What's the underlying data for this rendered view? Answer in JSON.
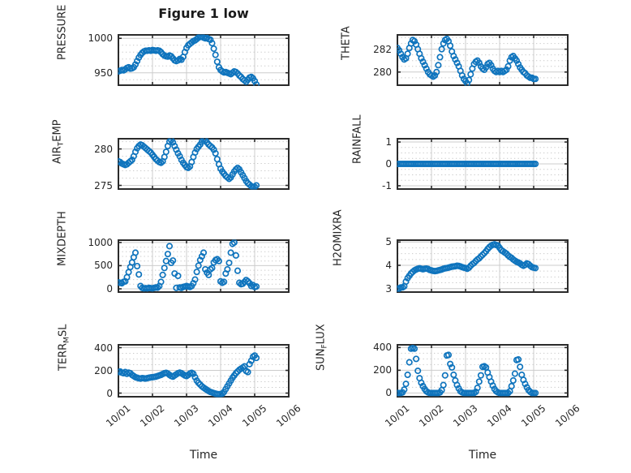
{
  "title": "Figure 1 low",
  "marker_color": "#0f74bd",
  "axis_color": "#2b2b2b",
  "grid_color": "#cccccc",
  "minor_grid_color": "#c9c9c9",
  "chart_data": {
    "type": "scatter",
    "title": "Figure 1 low",
    "xlabel": "Time",
    "marker": "open-circle",
    "grid": "major solid + minor dotted",
    "xlim": [
      0,
      5
    ],
    "xtick_positions": [
      0,
      1,
      2,
      3,
      4,
      5
    ],
    "xtick_labels": [
      "10/01",
      "10/02",
      "10/03",
      "10/04",
      "10/05",
      "10/06"
    ],
    "t_start": 0,
    "t_step": 0.05,
    "subplots": [
      {
        "id": "pressure",
        "ylabel": "PRESSURE",
        "ylabel_parts": [
          {
            "text": "PRESSURE"
          }
        ],
        "yticks": [
          950,
          1000
        ],
        "ylim": [
          932,
          1005
        ],
        "minor_step": 10,
        "values": [
          952,
          953,
          954,
          953.5,
          955,
          957,
          958,
          956,
          956.5,
          958,
          962,
          967,
          972,
          976,
          979,
          981,
          982,
          982,
          982.5,
          982,
          983,
          982.5,
          982,
          982.5,
          982,
          980,
          977,
          975,
          974,
          973.5,
          975,
          974,
          971,
          968,
          967,
          968,
          970,
          969,
          973,
          980,
          986,
          990,
          992,
          994,
          996,
          997,
          999,
          1001,
          1002,
          1002.5,
          1001,
          1000,
          1000.5,
          999,
          998,
          993,
          985,
          976,
          966,
          958,
          954,
          952,
          950.5,
          951,
          950,
          949,
          948,
          950,
          952,
          951,
          949,
          946,
          944,
          941,
          939,
          937,
          940,
          943,
          944,
          942,
          938,
          933
        ]
      },
      {
        "id": "theta",
        "ylabel": "THETA",
        "ylabel_parts": [
          {
            "text": "THETA"
          }
        ],
        "yticks": [
          280,
          282
        ],
        "ylim": [
          278.85,
          283.25
        ],
        "minor_step": 0.5,
        "values": [
          282.1,
          281.9,
          281.6,
          281.3,
          281.1,
          281.2,
          281.6,
          282.1,
          282.5,
          282.8,
          282.7,
          282.4,
          282.0,
          281.6,
          281.2,
          280.9,
          280.6,
          280.3,
          280.0,
          279.8,
          279.7,
          279.6,
          279.7,
          280.0,
          280.6,
          281.3,
          282.0,
          282.5,
          282.8,
          282.9,
          282.7,
          282.3,
          281.8,
          281.4,
          281.1,
          280.8,
          280.5,
          280.1,
          279.7,
          279.4,
          279.2,
          279.0,
          279.3,
          279.8,
          280.3,
          280.7,
          280.9,
          281.0,
          280.8,
          280.5,
          280.3,
          280.2,
          280.4,
          280.7,
          280.8,
          280.6,
          280.3,
          280.1,
          280.0,
          280.1,
          280.0,
          280.1,
          280.0,
          280.1,
          280.2,
          280.5,
          281.0,
          281.3,
          281.4,
          281.2,
          281.0,
          280.7,
          280.4,
          280.2,
          280.0,
          279.9,
          279.7,
          279.6,
          279.5,
          279.5,
          279.4,
          279.4
        ]
      },
      {
        "id": "air_temp",
        "ylabel": "AIR_TEMP",
        "ylabel_parts": [
          {
            "text": "AIR"
          },
          {
            "sub": "T"
          },
          {
            "text": "EMP"
          }
        ],
        "yticks": [
          275,
          280
        ],
        "ylim": [
          274.5,
          281.4
        ],
        "minor_step": 1,
        "values": [
          278.3,
          278.2,
          278.0,
          277.9,
          277.8,
          277.9,
          278.1,
          278.3,
          278.5,
          279.0,
          279.6,
          280.1,
          280.4,
          280.6,
          280.5,
          280.3,
          280.1,
          279.9,
          279.7,
          279.5,
          279.2,
          278.9,
          278.6,
          278.4,
          278.2,
          278.1,
          278.3,
          278.9,
          279.6,
          280.4,
          281.0,
          281.2,
          280.9,
          280.4,
          279.9,
          279.4,
          279.0,
          278.5,
          278.1,
          277.8,
          277.5,
          277.4,
          277.6,
          278.2,
          278.9,
          279.5,
          280.0,
          280.3,
          280.6,
          281.0,
          281.3,
          281.2,
          280.9,
          280.6,
          280.4,
          280.2,
          279.9,
          279.4,
          278.6,
          277.9,
          277.3,
          276.9,
          276.6,
          276.3,
          276.1,
          275.9,
          276.1,
          276.5,
          276.9,
          277.2,
          277.4,
          277.2,
          276.8,
          276.4,
          276.0,
          275.6,
          275.3,
          275.1,
          274.9,
          274.8,
          274.8,
          275.0
        ]
      },
      {
        "id": "rainfall",
        "ylabel": "RAINFALL",
        "ylabel_parts": [
          {
            "text": "RAINFALL"
          }
        ],
        "yticks": [
          -1,
          0,
          1
        ],
        "ylim": [
          -1.15,
          1.15
        ],
        "minor_step": 0.25,
        "values": [
          0,
          0,
          0,
          0,
          0,
          0,
          0,
          0,
          0,
          0,
          0,
          0,
          0,
          0,
          0,
          0,
          0,
          0,
          0,
          0,
          0,
          0,
          0,
          0,
          0,
          0,
          0,
          0,
          0,
          0,
          0,
          0,
          0,
          0,
          0,
          0,
          0,
          0,
          0,
          0,
          0,
          0,
          0,
          0,
          0,
          0,
          0,
          0,
          0,
          0,
          0,
          0,
          0,
          0,
          0,
          0,
          0,
          0,
          0,
          0,
          0,
          0,
          0,
          0,
          0,
          0,
          0,
          0,
          0,
          0,
          0,
          0,
          0,
          0,
          0,
          0,
          0,
          0,
          0,
          0,
          0,
          0
        ]
      },
      {
        "id": "mixdepth",
        "ylabel": "MIXDEPTH",
        "ylabel_parts": [
          {
            "text": "MIXDEPTH"
          }
        ],
        "yticks": [
          0,
          500,
          1000
        ],
        "ylim": [
          -70,
          1050
        ],
        "minor_step": 100,
        "values": [
          140,
          130,
          120,
          150,
          160,
          250,
          360,
          470,
          570,
          680,
          780,
          490,
          310,
          60,
          20,
          10,
          15,
          10,
          20,
          15,
          10,
          20,
          30,
          25,
          60,
          150,
          300,
          450,
          600,
          750,
          920,
          560,
          610,
          330,
          20,
          280,
          30,
          20,
          40,
          50,
          60,
          50,
          40,
          60,
          120,
          200,
          365,
          500,
          620,
          700,
          780,
          420,
          350,
          300,
          420,
          450,
          570,
          620,
          640,
          600,
          160,
          130,
          150,
          330,
          420,
          560,
          780,
          970,
          1000,
          720,
          390,
          130,
          100,
          110,
          150,
          190,
          160,
          120,
          60,
          80,
          40,
          50
        ]
      },
      {
        "id": "h2omixra",
        "ylabel": "H2OMIXRA",
        "ylabel_parts": [
          {
            "text": "H2OMIXRA"
          }
        ],
        "yticks": [
          3,
          4,
          5
        ],
        "ylim": [
          2.85,
          5.08
        ],
        "minor_step": 0.25,
        "values": [
          3.0,
          3.0,
          3.05,
          3.05,
          3.1,
          3.3,
          3.45,
          3.55,
          3.65,
          3.72,
          3.78,
          3.82,
          3.85,
          3.87,
          3.85,
          3.83,
          3.85,
          3.86,
          3.84,
          3.8,
          3.78,
          3.76,
          3.75,
          3.76,
          3.78,
          3.8,
          3.82,
          3.85,
          3.87,
          3.88,
          3.9,
          3.92,
          3.94,
          3.95,
          3.96,
          3.98,
          3.97,
          3.95,
          3.92,
          3.9,
          3.88,
          3.85,
          3.9,
          3.98,
          4.05,
          4.1,
          4.18,
          4.25,
          4.3,
          4.38,
          4.45,
          4.52,
          4.6,
          4.7,
          4.78,
          4.84,
          4.88,
          4.9,
          4.87,
          4.85,
          4.75,
          4.65,
          4.6,
          4.55,
          4.5,
          4.42,
          4.36,
          4.32,
          4.25,
          4.2,
          4.15,
          4.12,
          4.08,
          4.02,
          3.98,
          4.02,
          4.08,
          4.05,
          3.98,
          3.92,
          3.9,
          3.88
        ]
      },
      {
        "id": "terr_msl",
        "ylabel": "TERR_MSL",
        "ylabel_parts": [
          {
            "text": "TERR"
          },
          {
            "sub": "M"
          },
          {
            "text": "SL"
          }
        ],
        "yticks": [
          0,
          200,
          400
        ],
        "ylim": [
          -32,
          425
        ],
        "minor_step": 50,
        "values": [
          185,
          190,
          180,
          175,
          185,
          170,
          180,
          175,
          160,
          150,
          140,
          135,
          130,
          128,
          132,
          130,
          128,
          132,
          135,
          138,
          140,
          142,
          145,
          150,
          155,
          160,
          168,
          175,
          178,
          172,
          160,
          150,
          145,
          155,
          165,
          175,
          180,
          175,
          165,
          155,
          150,
          160,
          172,
          178,
          170,
          140,
          110,
          90,
          75,
          60,
          48,
          38,
          28,
          18,
          10,
          5,
          0,
          -5,
          -8,
          -10,
          -8,
          -5,
          10,
          35,
          60,
          85,
          110,
          135,
          155,
          175,
          190,
          205,
          215,
          225,
          235,
          195,
          185,
          255,
          285,
          320,
          330,
          310
        ]
      },
      {
        "id": "sun_flux",
        "ylabel": "SUN_FLUX",
        "ylabel_parts": [
          {
            "text": "SUN"
          },
          {
            "sub": "F"
          },
          {
            "text": "LUX"
          }
        ],
        "yticks": [
          0,
          200,
          400
        ],
        "ylim": [
          -33,
          424
        ],
        "minor_step": 50,
        "values": [
          0,
          0,
          0,
          5,
          30,
          80,
          160,
          270,
          390,
          395,
          390,
          300,
          195,
          130,
          90,
          60,
          35,
          15,
          5,
          0,
          0,
          0,
          0,
          0,
          0,
          5,
          25,
          70,
          155,
          330,
          335,
          255,
          225,
          160,
          110,
          70,
          40,
          15,
          5,
          0,
          0,
          0,
          0,
          0,
          0,
          0,
          10,
          45,
          100,
          155,
          230,
          235,
          225,
          180,
          140,
          100,
          65,
          35,
          15,
          5,
          0,
          0,
          0,
          0,
          0,
          0,
          15,
          60,
          110,
          170,
          290,
          295,
          230,
          160,
          115,
          80,
          50,
          25,
          10,
          0,
          0,
          0
        ]
      }
    ]
  }
}
